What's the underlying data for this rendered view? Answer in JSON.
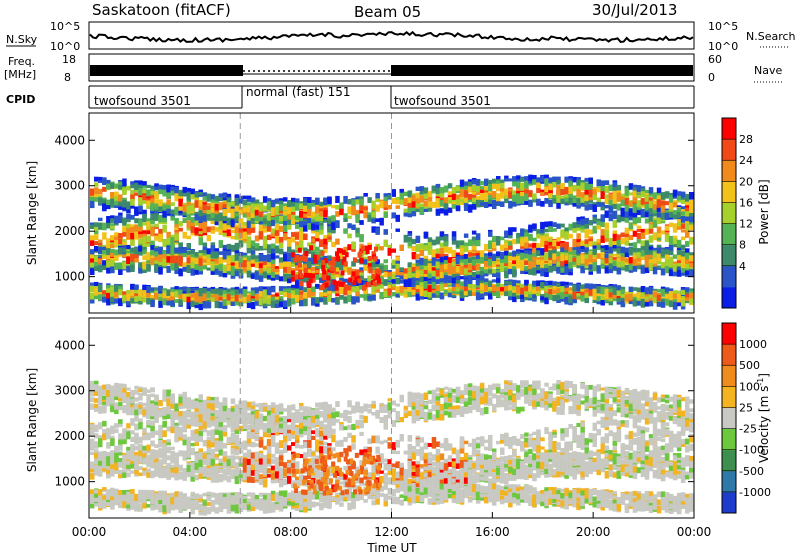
{
  "header": {
    "station": "Saskatoon (fitACF)",
    "beam": "Beam 05",
    "date": "30/Jul/2013"
  },
  "nsky_panel": {
    "left_label": "N.Sky",
    "right_label": "N.Search",
    "left_ticks": [
      "10^5",
      "10^0"
    ],
    "right_ticks": [
      "10^5",
      "10^0"
    ]
  },
  "freq_panel": {
    "left_label_1": "Freq.",
    "left_label_2": "[MHz]",
    "right_label": "Nave",
    "left_ticks": [
      "18",
      "8"
    ],
    "right_ticks": [
      "60",
      "0"
    ]
  },
  "cpid_panel": {
    "label": "CPID",
    "segments": [
      {
        "text": "twofsound 3501",
        "start_hour": 0,
        "end_hour": 6
      },
      {
        "text": "normal (fast) 151",
        "start_hour": 6,
        "end_hour": 12
      },
      {
        "text": "twofsound 3501",
        "start_hour": 12,
        "end_hour": 24
      }
    ]
  },
  "chart_data": [
    {
      "type": "heatmap",
      "name": "power",
      "ylabel": "Slant Range [km]",
      "ylim": [
        200,
        4600
      ],
      "y_ticks": [
        "1000",
        "2000",
        "3000",
        "4000"
      ],
      "x_ticks": [
        "00:00",
        "04:00",
        "08:00",
        "12:00",
        "16:00",
        "20:00",
        "00:00"
      ],
      "colorbar_label": "Power [dB]",
      "colorbar_ticks": [
        "28",
        "24",
        "20",
        "16",
        "12",
        "8",
        "4"
      ],
      "colors": [
        "#0a1ee6",
        "#2a55c8",
        "#3c8a6a",
        "#55b355",
        "#a6d02c",
        "#f2c21b",
        "#f08a1c",
        "#f14a18",
        "#ff0000"
      ]
    },
    {
      "type": "heatmap",
      "name": "velocity",
      "ylabel": "Slant Range [km]",
      "xlabel": "Time UT",
      "ylim": [
        200,
        4600
      ],
      "y_ticks": [
        "1000",
        "2000",
        "3000",
        "4000"
      ],
      "x_ticks": [
        "00:00",
        "04:00",
        "08:00",
        "12:00",
        "16:00",
        "20:00",
        "00:00"
      ],
      "colorbar_label": "Velocity [m s",
      "colorbar_label_sup": "-1",
      "colorbar_label_end": "]",
      "colorbar_ticks": [
        "1000",
        "500",
        "100",
        "25",
        "-25",
        "-100",
        "-500",
        "-1000"
      ],
      "colors": [
        "#1e3ccc",
        "#2f78aa",
        "#3c8f4e",
        "#6cc83c",
        "#c9c9c4",
        "#f3b41f",
        "#f08b1d",
        "#ee5a19",
        "#ff0000"
      ]
    }
  ]
}
